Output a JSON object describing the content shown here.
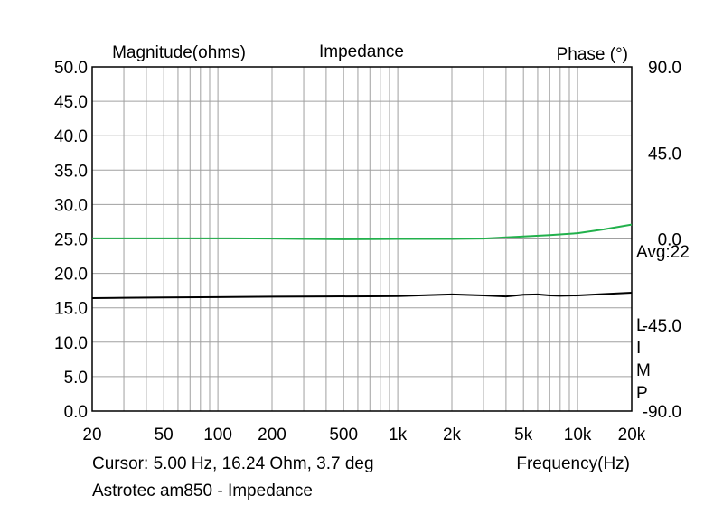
{
  "chart_data": {
    "type": "line",
    "title": "Impedance",
    "ylabel_left": "Magnitude(ohms)",
    "ylabel_right": "Phase (°)",
    "xlabel": "Frequency(Hz)",
    "x_scale": "log",
    "xlim": [
      20,
      20000
    ],
    "ylim_left": [
      0,
      50
    ],
    "ylim_right": [
      -90,
      90
    ],
    "x_tick_labels": [
      {
        "value": 20,
        "label": "20"
      },
      {
        "value": 50,
        "label": "50"
      },
      {
        "value": 100,
        "label": "100"
      },
      {
        "value": 200,
        "label": "200"
      },
      {
        "value": 500,
        "label": "500"
      },
      {
        "value": 1000,
        "label": "1k"
      },
      {
        "value": 2000,
        "label": "2k"
      },
      {
        "value": 5000,
        "label": "5k"
      },
      {
        "value": 10000,
        "label": "10k"
      },
      {
        "value": 20000,
        "label": "20k"
      }
    ],
    "y_left_tick_labels": [
      {
        "value": 50,
        "label": "50.0"
      },
      {
        "value": 45,
        "label": "45.0"
      },
      {
        "value": 40,
        "label": "40.0"
      },
      {
        "value": 35,
        "label": "35.0"
      },
      {
        "value": 30,
        "label": "30.0"
      },
      {
        "value": 25,
        "label": "25.0"
      },
      {
        "value": 20,
        "label": "20.0"
      },
      {
        "value": 15,
        "label": "15.0"
      },
      {
        "value": 10,
        "label": "10.0"
      },
      {
        "value": 5,
        "label": "5.0"
      },
      {
        "value": 0,
        "label": "0.0"
      }
    ],
    "y_right_tick_labels": [
      {
        "value": 90,
        "label": "90.0"
      },
      {
        "value": 45,
        "label": "45.0"
      },
      {
        "value": 0,
        "label": "0.0"
      },
      {
        "value": -45,
        "label": "-45.0"
      },
      {
        "value": -90,
        "label": "-90.0"
      }
    ],
    "grid": true,
    "annotations": {
      "avg": "Avg:22",
      "limp": [
        "L",
        "I",
        "M",
        "P"
      ],
      "cursor": "Cursor: 5.00 Hz, 16.24 Ohm, 3.7 deg",
      "caption": "Astrotec am850 - Impedance"
    },
    "series": [
      {
        "name": "Impedance magnitude",
        "axis": "left",
        "color": "#000000",
        "x": [
          20,
          30,
          50,
          100,
          200,
          400,
          700,
          1000,
          1500,
          2000,
          3000,
          4000,
          5000,
          6000,
          7000,
          8000,
          10000,
          14000,
          20000
        ],
        "values": [
          16.4,
          16.45,
          16.5,
          16.55,
          16.62,
          16.65,
          16.67,
          16.7,
          16.85,
          16.95,
          16.8,
          16.65,
          16.9,
          16.95,
          16.8,
          16.75,
          16.8,
          17.0,
          17.2
        ]
      },
      {
        "name": "Phase",
        "axis": "right",
        "color": "#22b14c",
        "x": [
          20,
          50,
          100,
          200,
          300,
          500,
          700,
          1000,
          2000,
          3000,
          4000,
          5000,
          7000,
          10000,
          14000,
          20000
        ],
        "values": [
          0.3,
          0.3,
          0.3,
          0.2,
          0.0,
          -0.2,
          -0.1,
          0.0,
          0.0,
          0.2,
          0.8,
          1.3,
          2.0,
          3.0,
          5.0,
          7.5
        ]
      }
    ]
  }
}
